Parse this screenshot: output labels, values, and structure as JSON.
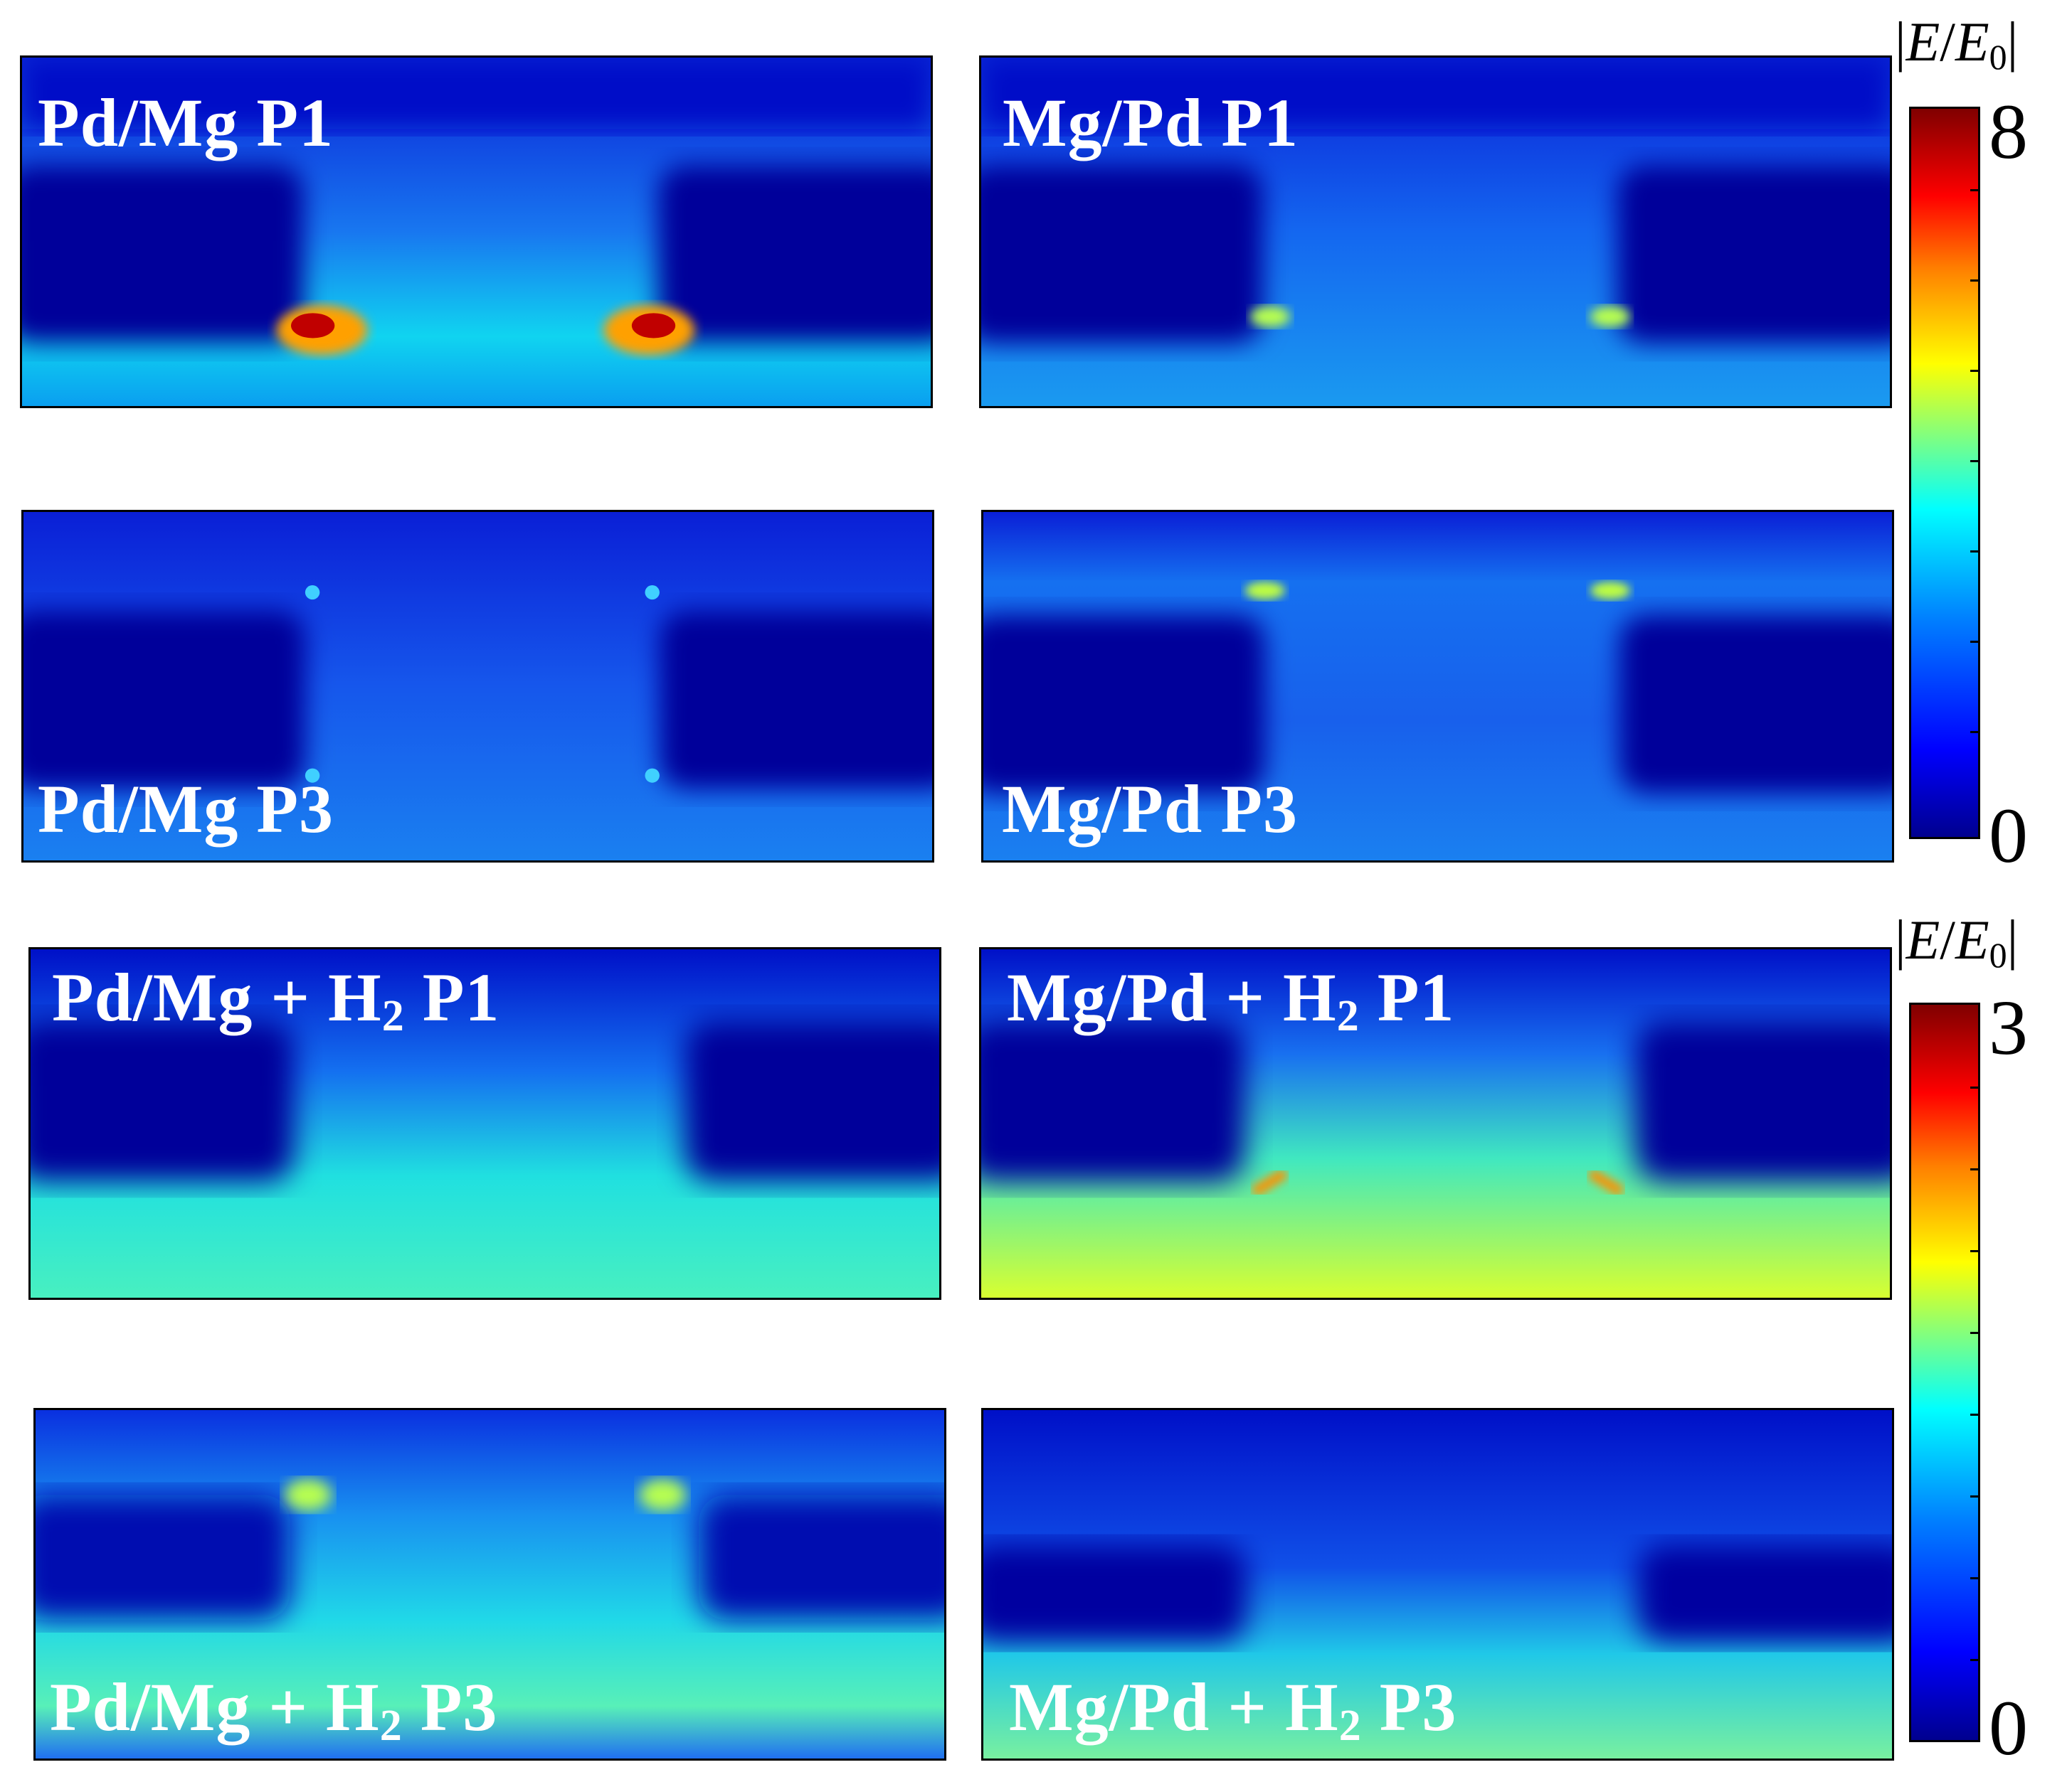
{
  "panels": [
    {
      "id": "p1",
      "label_main": "Pd/Mg P1",
      "label_tail": ""
    },
    {
      "id": "p2",
      "label_main": "Mg/Pd P1",
      "label_tail": ""
    },
    {
      "id": "p3",
      "label_main": "Pd/Mg P3",
      "label_tail": ""
    },
    {
      "id": "p4",
      "label_main": "Mg/Pd P3",
      "label_tail": ""
    },
    {
      "id": "p5",
      "label_main": "Pd/Mg + H",
      "label_sub": "2",
      "label_tail": " P1"
    },
    {
      "id": "p6",
      "label_main": "Mg/Pd + H",
      "label_sub": "2",
      "label_tail": " P1"
    },
    {
      "id": "p7",
      "label_main": "Pd/Mg + H",
      "label_sub": "2",
      "label_tail": " P3"
    },
    {
      "id": "p8",
      "label_main": "Mg/Pd + H",
      "label_sub": "2",
      "label_tail": " P3"
    }
  ],
  "colorbars": [
    {
      "title_pre": "|",
      "title_var1": "E",
      "title_slash": "/",
      "title_var2": "E",
      "title_sub": "0",
      "title_post": "|",
      "max": "8",
      "min": "0"
    },
    {
      "title_pre": "|",
      "title_var1": "E",
      "title_slash": "/",
      "title_var2": "E",
      "title_sub": "0",
      "title_post": "|",
      "max": "3",
      "min": "0"
    }
  ],
  "colors": {
    "deep_blue": "#00008f",
    "blue": "#0000ff",
    "cyan": "#00ffff",
    "yellow": "#ffff00",
    "red": "#ff0000",
    "dark_red": "#800000"
  }
}
